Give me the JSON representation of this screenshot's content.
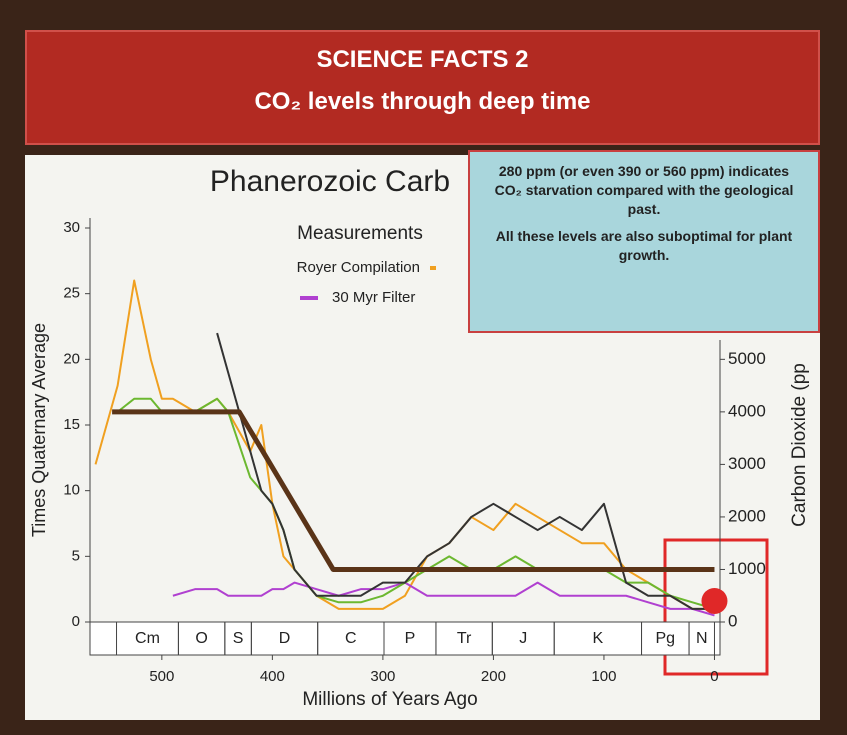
{
  "header": {
    "title": "SCIENCE FACTS 2",
    "subtitle": "CO₂ levels through deep time"
  },
  "callout": {
    "paragraphs": [
      "280 ppm (or even 390 or 560 ppm) indicates CO₂ starvation compared with the geological past.",
      "All these levels are also suboptimal for plant growth."
    ]
  },
  "chart_data": {
    "type": "line",
    "title": "Phanerozoic Carb",
    "x_label": "Millions of Years Ago",
    "y_label": "Times Quaternary Average",
    "y2_label": "Carbon Dioxide (pp",
    "legend_title": "Measurements",
    "x": [
      560,
      540,
      525,
      510,
      500,
      490,
      470,
      450,
      440,
      420,
      410,
      400,
      390,
      380,
      360,
      340,
      320,
      300,
      280,
      260,
      240,
      220,
      200,
      180,
      160,
      140,
      120,
      100,
      80,
      60,
      40,
      20,
      0
    ],
    "series": [
      {
        "name": "Royer Compilation",
        "color": "#f0a020",
        "values": [
          12,
          18,
          26,
          20,
          17,
          17,
          16,
          17,
          16,
          13,
          15,
          9,
          5,
          4,
          2,
          1,
          1,
          1,
          2,
          5,
          6,
          8,
          7,
          9,
          8,
          7,
          6,
          6,
          4,
          3,
          2,
          1,
          1
        ]
      },
      {
        "name": "30 Myr Filter",
        "color": "#b040d0",
        "values": [
          null,
          null,
          null,
          null,
          null,
          2,
          2.5,
          2.5,
          2,
          2,
          2,
          2.5,
          2.5,
          3,
          2.5,
          2,
          2.5,
          2.5,
          3,
          2,
          2,
          2,
          2,
          2,
          3,
          2,
          2,
          2,
          2,
          1.5,
          1,
          1,
          0.5
        ]
      },
      {
        "color": "#6cb830",
        "values": [
          null,
          16,
          17,
          17,
          16,
          16,
          16,
          17,
          16,
          11,
          10,
          9,
          7,
          4,
          2,
          1.5,
          1.5,
          2,
          3,
          4,
          5,
          4,
          4,
          5,
          4,
          4,
          4,
          4,
          3,
          3,
          2,
          1.5,
          1
        ]
      },
      {
        "color": "#333333",
        "values": [
          null,
          null,
          null,
          null,
          null,
          null,
          null,
          22,
          19,
          13,
          10,
          9,
          7,
          4,
          2,
          2,
          2,
          3,
          3,
          5,
          6,
          8,
          9,
          8,
          7,
          8,
          7,
          9,
          3,
          2,
          2,
          1,
          1
        ]
      },
      {
        "color": "#5a3418",
        "x": [
          545,
          430,
          345,
          0
        ],
        "values": [
          16,
          16,
          4,
          4
        ],
        "width": 5
      },
      {
        "color": "#e02828",
        "x": [
          0
        ],
        "values": [
          400
        ],
        "axis": "y2",
        "marker": "dot"
      }
    ],
    "xlim": [
      565,
      -5
    ],
    "xticks": [
      500,
      400,
      300,
      200,
      100,
      0
    ],
    "ylim": [
      0,
      30
    ],
    "yticks": [
      0,
      5,
      10,
      15,
      20,
      25,
      30
    ],
    "y2lim": [
      0,
      7500
    ],
    "y2ticks": [
      0,
      1000,
      2000,
      3000,
      4000,
      5000
    ],
    "periods": {
      "labels": [
        "Cm",
        "O",
        "S",
        "D",
        "C",
        "P",
        "Tr",
        "J",
        "K",
        "Pg",
        "N"
      ],
      "bounds": [
        541,
        485,
        443,
        419,
        359,
        299,
        252,
        201,
        145,
        66,
        23,
        0
      ]
    }
  }
}
